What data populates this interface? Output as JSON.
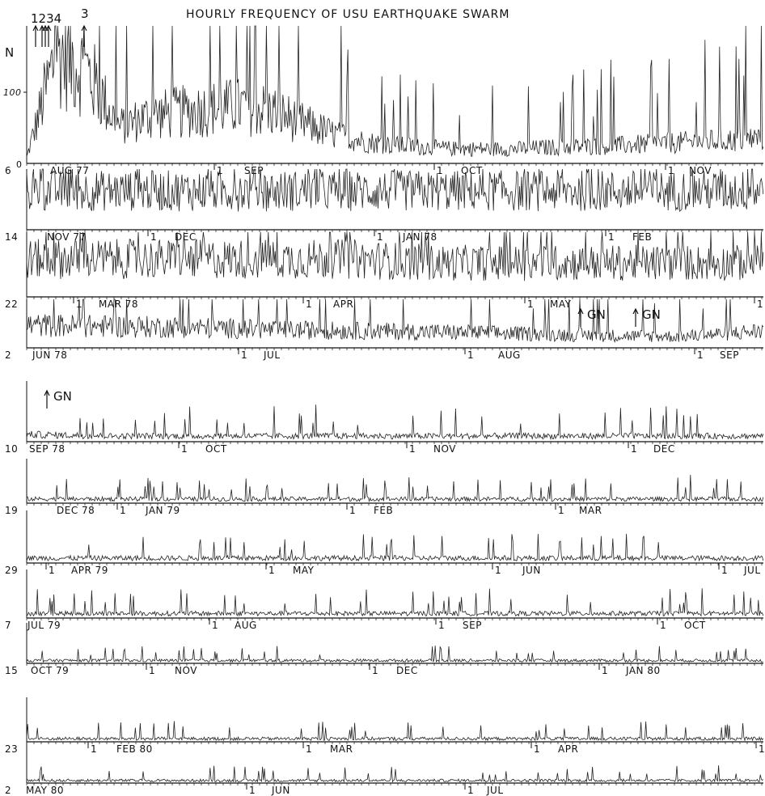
{
  "chart_data": {
    "type": "line",
    "title": "HOURLY FREQUENCY OF USU EARTHQUAKE SWARM",
    "ylabel": "N",
    "ytick": "100",
    "yzero": "0",
    "ylim": [
      0,
      160
    ],
    "grid": false,
    "top_markers": [
      {
        "label": "1234",
        "arrows": 4
      },
      {
        "label": "3",
        "arrows": 1
      }
    ],
    "series": [
      {
        "values": [
          8,
          155,
          125,
          50,
          65,
          70,
          75,
          78,
          72,
          55,
          40,
          30,
          25,
          22,
          20,
          20,
          20,
          22,
          23,
          24,
          26,
          28,
          30,
          32,
          35
        ]
      },
      {
        "values": [
          55,
          55,
          55,
          55,
          55,
          55,
          55,
          55,
          55,
          55
        ]
      },
      {
        "values": [
          50,
          50,
          50,
          50,
          50,
          45,
          45,
          45,
          45,
          45
        ]
      },
      {
        "values": [
          40,
          38,
          36,
          32,
          30,
          28,
          25,
          22,
          20,
          30
        ]
      },
      {
        "values": [
          10,
          8,
          8,
          8,
          8,
          8,
          8,
          8,
          8,
          8
        ]
      },
      {
        "values": [
          8,
          8,
          8,
          8,
          8,
          8,
          8,
          8,
          8,
          8
        ]
      },
      {
        "values": [
          8,
          8,
          8,
          8,
          8,
          8,
          8,
          8,
          8,
          8
        ]
      },
      {
        "values": [
          8,
          8,
          8,
          8,
          8,
          8,
          8,
          8,
          8,
          8
        ]
      },
      {
        "values": [
          6,
          6,
          6,
          6,
          6,
          6,
          6,
          6,
          6,
          6
        ]
      },
      {
        "values": [
          6,
          6,
          6,
          6,
          6,
          6,
          6,
          6,
          6,
          6
        ]
      },
      {
        "values": [
          5,
          5,
          5,
          5,
          5,
          5,
          5,
          5,
          5,
          5
        ]
      }
    ],
    "rows": [
      {
        "labels": [
          {
            "text": "6",
            "first": true
          },
          {
            "text": "AUG 77"
          },
          {
            "text": "1",
            "tick": true
          },
          {
            "text": "SEP"
          },
          {
            "text": "1",
            "tick": true
          },
          {
            "text": "OCT"
          },
          {
            "text": "1",
            "tick": true
          },
          {
            "text": "NOV"
          }
        ]
      },
      {
        "labels": [
          {
            "text": "14",
            "first": true
          },
          {
            "text": "NOV 77"
          },
          {
            "text": "1",
            "tick": true
          },
          {
            "text": "DEC"
          },
          {
            "text": "1",
            "tick": true
          },
          {
            "text": "JAN 78"
          },
          {
            "text": "1",
            "tick": true
          },
          {
            "text": "FEB"
          }
        ]
      },
      {
        "labels": [
          {
            "text": "22",
            "first": true
          },
          {
            "text": "1",
            "tick": true
          },
          {
            "text": "MAR 78"
          },
          {
            "text": "1",
            "tick": true
          },
          {
            "text": "APR"
          },
          {
            "text": "1",
            "tick": true
          },
          {
            "text": "MAY"
          },
          {
            "text": "1",
            "tick": true
          }
        ]
      },
      {
        "labels": [
          {
            "text": "2",
            "first": true
          },
          {
            "text": "JUN 78"
          },
          {
            "text": "1",
            "tick": true
          },
          {
            "text": "JUL"
          },
          {
            "text": "1",
            "tick": true
          },
          {
            "text": "AUG"
          },
          {
            "text": "1",
            "tick": true
          },
          {
            "text": "SEP"
          }
        ],
        "annotations": [
          {
            "text": "GN"
          },
          {
            "text": "GN"
          }
        ]
      },
      {
        "labels": [
          {
            "text": "10",
            "first": true
          },
          {
            "text": "SEP 78"
          },
          {
            "text": "1",
            "tick": true
          },
          {
            "text": "OCT"
          },
          {
            "text": "1",
            "tick": true
          },
          {
            "text": "NOV"
          },
          {
            "text": "1",
            "tick": true
          },
          {
            "text": "DEC"
          }
        ],
        "annotations": [
          {
            "text": "GN"
          }
        ]
      },
      {
        "labels": [
          {
            "text": "19",
            "first": true
          },
          {
            "text": "DEC 78"
          },
          {
            "text": "1",
            "tick": true
          },
          {
            "text": "JAN 79"
          },
          {
            "text": "1",
            "tick": true
          },
          {
            "text": "FEB"
          },
          {
            "text": "1",
            "tick": true
          },
          {
            "text": "MAR"
          }
        ]
      },
      {
        "labels": [
          {
            "text": "29",
            "first": true
          },
          {
            "text": "1",
            "tick": true
          },
          {
            "text": "APR 79"
          },
          {
            "text": "1",
            "tick": true
          },
          {
            "text": "MAY"
          },
          {
            "text": "1",
            "tick": true
          },
          {
            "text": "JUN"
          },
          {
            "text": "1",
            "tick": true
          },
          {
            "text": "JUL"
          }
        ]
      },
      {
        "labels": [
          {
            "text": "7",
            "first": true
          },
          {
            "text": "JUL 79"
          },
          {
            "text": "1",
            "tick": true
          },
          {
            "text": "AUG"
          },
          {
            "text": "1",
            "tick": true
          },
          {
            "text": "SEP"
          },
          {
            "text": "1",
            "tick": true
          },
          {
            "text": "OCT"
          }
        ]
      },
      {
        "labels": [
          {
            "text": "15",
            "first": true
          },
          {
            "text": "OCT 79"
          },
          {
            "text": "1",
            "tick": true
          },
          {
            "text": "NOV"
          },
          {
            "text": "1",
            "tick": true
          },
          {
            "text": "DEC"
          },
          {
            "text": "1",
            "tick": true
          },
          {
            "text": "JAN 80"
          }
        ]
      },
      {
        "labels": [
          {
            "text": "23",
            "first": true
          },
          {
            "text": "1",
            "tick": true
          },
          {
            "text": "FEB 80"
          },
          {
            "text": "1",
            "tick": true
          },
          {
            "text": "MAR"
          },
          {
            "text": "1",
            "tick": true
          },
          {
            "text": "APR"
          },
          {
            "text": "1",
            "tick": true
          }
        ]
      },
      {
        "labels": [
          {
            "text": "2",
            "first": true
          },
          {
            "text": "MAY 80"
          },
          {
            "text": "1",
            "tick": true
          },
          {
            "text": "JUN"
          },
          {
            "text": "1",
            "tick": true
          },
          {
            "text": "JUL"
          }
        ]
      }
    ]
  }
}
